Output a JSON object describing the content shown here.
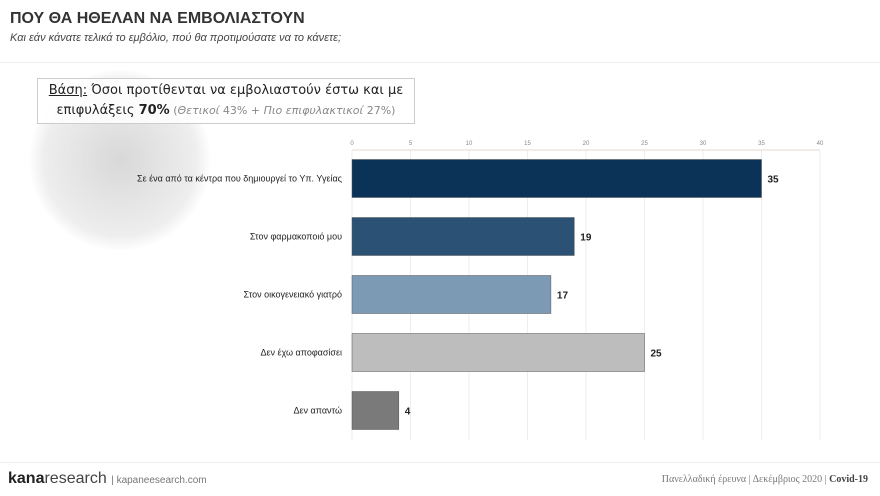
{
  "header": {
    "title": "ΠΟΥ ΘΑ ΗΘΕΛΑΝ ΝΑ ΕΜΒΟΛΙΑΣΤΟΥΝ",
    "subtitle": "Και εάν κάνατε τελικά το εμβόλιο, πού θα προτιμούσατε να το κάνετε;"
  },
  "base_note": {
    "label": "Βάση:",
    "text": " Όσοι προτίθενται να εμβολιαστούν έστω και με επιφυλάξεις ",
    "value": "70%",
    "detail_open": " (",
    "pos_label": "Θετικοί",
    "pos_value": " 43% + ",
    "res_label": "Πιο επιφυλακτικοί",
    "res_value": " 27%)"
  },
  "chart_data": {
    "type": "bar",
    "orientation": "horizontal",
    "categories": [
      "Σε ένα από τα κέντρα που δημιουργεί το Υπ. Υγείας",
      "Στον φαρμακοποιό μου",
      "Στον οικογενειακό γιατρό",
      "Δεν έχω αποφασίσει",
      "Δεν απαντώ"
    ],
    "values": [
      35,
      19,
      17,
      25,
      4
    ],
    "colors": [
      "#0b3358",
      "#2b5275",
      "#7d9ab4",
      "#bdbdbd",
      "#7a7a7a"
    ],
    "xlim": [
      0,
      40
    ],
    "xticks": [
      0,
      5,
      10,
      15,
      20,
      25,
      30,
      35,
      40
    ],
    "grid": true,
    "axis_position": "top"
  },
  "footer": {
    "brand_bold": "kana",
    "brand_rest": "research",
    "url": "kapaneesearch.com",
    "right_text": "Πανελλαδική έρευνα | Δεκέμβριος 2020 | ",
    "right_bold": "Covid-19"
  }
}
